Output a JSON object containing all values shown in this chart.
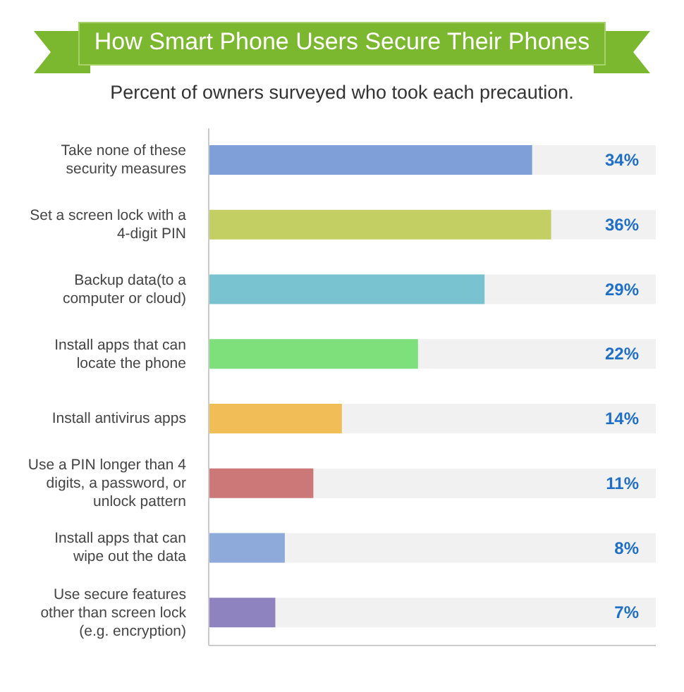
{
  "chart_data": {
    "type": "bar",
    "orientation": "horizontal",
    "title": "How Smart Phone Users Secure Their Phones",
    "subtitle": "Percent of owners surveyed who took each precaution.",
    "categories": [
      "Take none of these security measures",
      "Set a screen lock with a 4-digit PIN",
      "Backup data(to a computer or cloud)",
      "Install apps that can locate the phone",
      "Install antivirus apps",
      "Use a PIN longer than 4 digits, a password, or unlock pattern",
      "Install apps that can wipe out the data",
      "Use secure features other than screen lock (e.g. encryption)"
    ],
    "values": [
      34,
      36,
      29,
      22,
      14,
      11,
      8,
      7
    ],
    "value_labels": [
      "34%",
      "36%",
      "29%",
      "22%",
      "14%",
      "11%",
      "8%",
      "7%"
    ],
    "colors": [
      "#7f9fd8",
      "#c3cf62",
      "#79c3d1",
      "#7de07a",
      "#f0bd57",
      "#cd7878",
      "#8eaadb",
      "#8f83bf"
    ],
    "xlim": [
      0,
      47
    ],
    "tick_labels": "y"
  }
}
